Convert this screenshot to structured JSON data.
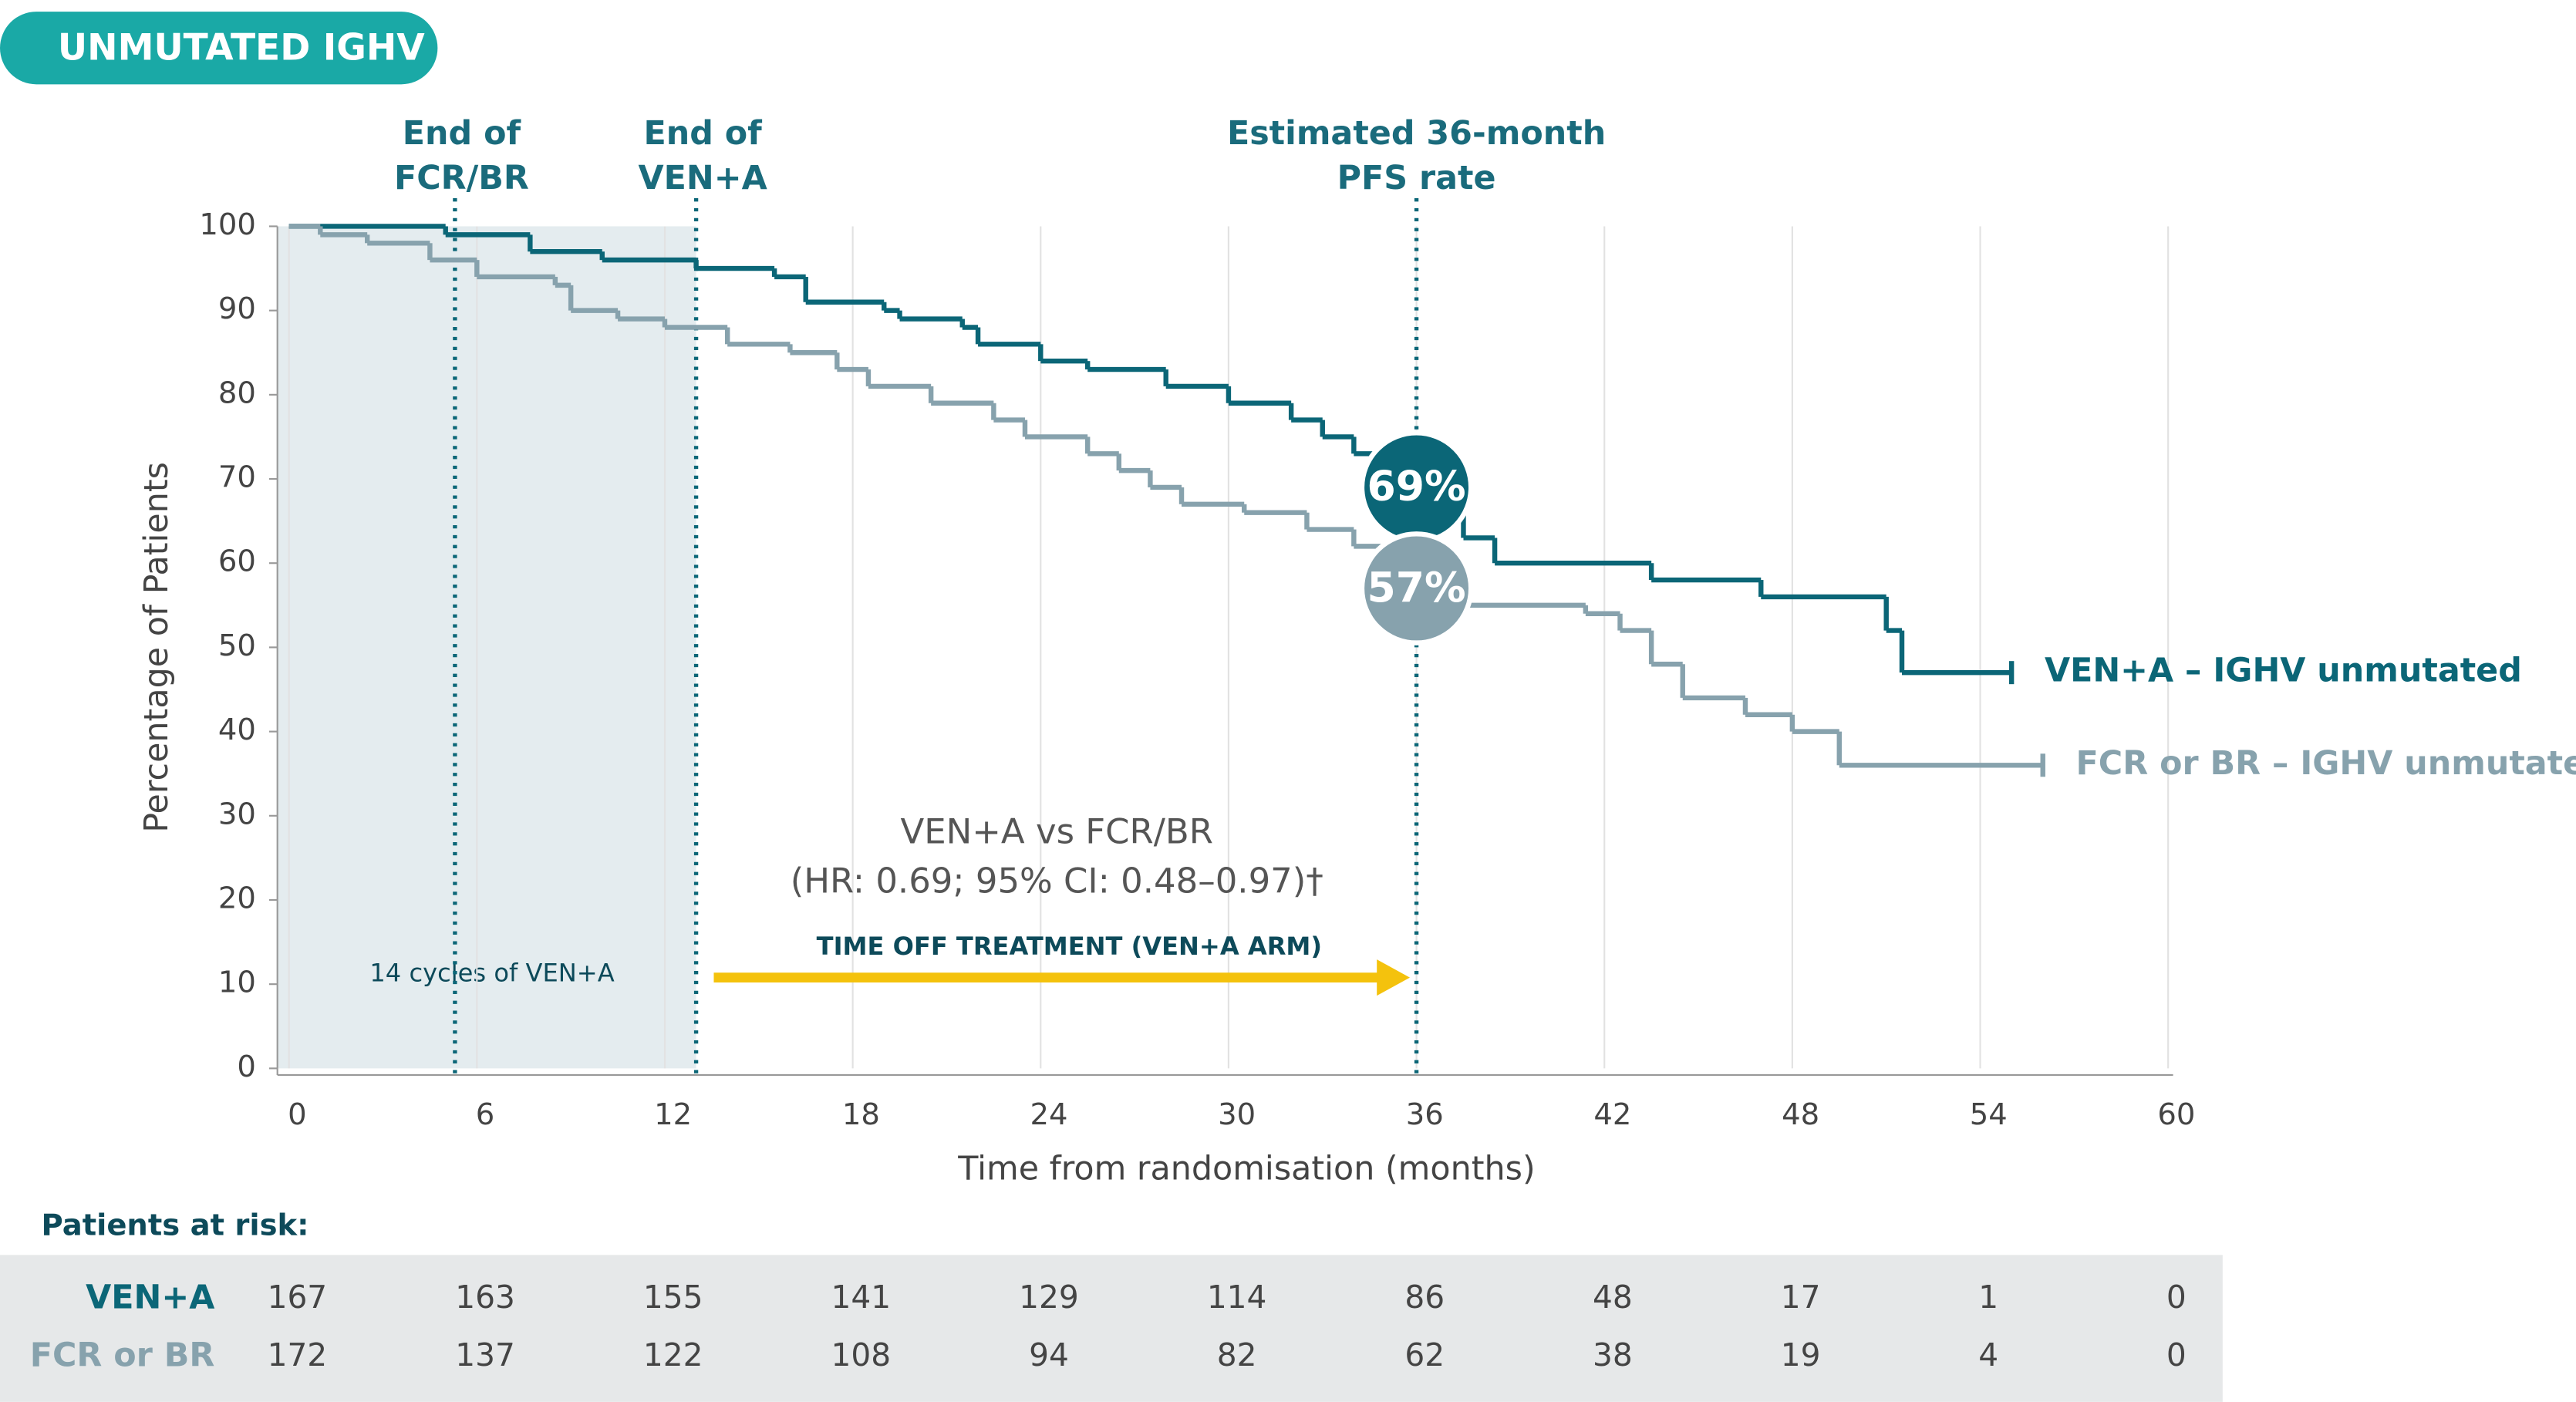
{
  "chart_data": {
    "type": "line",
    "step": true,
    "badge": "UNMUTATED IGHV",
    "x_label": "Time from randomisation (months)",
    "y_label": "Percentage of Patients",
    "xlim": [
      0,
      60
    ],
    "xticks": [
      0,
      6,
      12,
      18,
      24,
      30,
      36,
      42,
      48,
      54,
      60
    ],
    "ylim": [
      0,
      100
    ],
    "yticks": [
      0,
      10,
      20,
      30,
      40,
      50,
      60,
      70,
      80,
      90,
      100
    ],
    "grid": true,
    "series": [
      {
        "name": "VEN+A – IGHV unmutated",
        "color": "#0b6677",
        "x": [
          0,
          5,
          7.7,
          10,
          13,
          15.5,
          16.5,
          19,
          19.5,
          21.5,
          22,
          24,
          25.5,
          28,
          30,
          32,
          33,
          34,
          36,
          37,
          37.5,
          38.5,
          43.5,
          47,
          51,
          51.5,
          55
        ],
        "values": [
          100,
          99,
          97,
          96,
          95,
          94,
          91,
          90,
          89,
          88,
          86,
          84,
          83,
          81,
          79,
          77,
          75,
          73,
          69,
          66,
          63,
          60,
          58,
          56,
          52,
          47,
          47
        ]
      },
      {
        "name": "FCR or BR – IGHV unmutated",
        "color": "#87a2ad",
        "x": [
          0,
          1,
          2.5,
          4.5,
          6,
          8.5,
          9,
          10.5,
          12,
          14,
          16,
          17.5,
          18.5,
          20.5,
          22.5,
          23.5,
          25.5,
          26.5,
          27.5,
          28.5,
          30.5,
          32.5,
          34,
          35,
          36,
          37.5,
          41.4,
          42.5,
          43.5,
          44.5,
          46.5,
          48,
          49.5,
          56
        ],
        "values": [
          100,
          99,
          98,
          96,
          94,
          93,
          90,
          89,
          88,
          86,
          85,
          83,
          81,
          79,
          77,
          75,
          73,
          71,
          69,
          67,
          66,
          64,
          62,
          60,
          57,
          55,
          54,
          52,
          48,
          44,
          42,
          40,
          36,
          36
        ]
      }
    ],
    "shaded_until": 13,
    "shaded_label": "14 cycles of VEN+A",
    "markers": [
      {
        "x": 5.3,
        "lines": [
          "End of",
          "FCR/BR"
        ]
      },
      {
        "x": 13,
        "lines": [
          "End of",
          "VEN+A"
        ]
      },
      {
        "x": 36,
        "lines": [
          "Estimated 36-month",
          "PFS rate"
        ]
      }
    ],
    "estimates": {
      "x": 36,
      "values": [
        69,
        57
      ],
      "value_labels": [
        "69%",
        "57%"
      ]
    },
    "arrow": {
      "from": 13.3,
      "to": 36,
      "label": "TIME OFF TREATMENT (VEN+A ARM)"
    },
    "hr_text": [
      "VEN+A vs FCR/BR",
      "(HR: 0.69; 95% CI: 0.48–0.97)†"
    ],
    "risk_table": {
      "title": "Patients at risk:",
      "rows": [
        {
          "name": "VEN+A",
          "values": [
            167,
            163,
            155,
            141,
            129,
            114,
            86,
            48,
            17,
            1,
            0
          ]
        },
        {
          "name": "FCR or BR",
          "values": [
            172,
            137,
            122,
            108,
            94,
            82,
            62,
            38,
            19,
            4,
            0
          ]
        }
      ]
    }
  }
}
